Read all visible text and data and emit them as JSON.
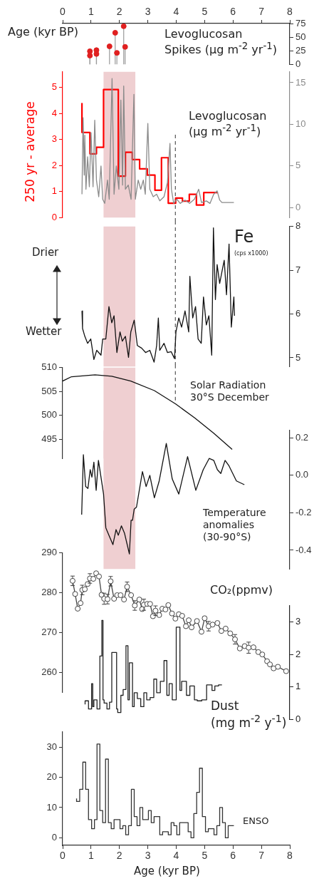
{
  "chart_data": [
    {
      "type": "lollipop",
      "xlabel": "Age (kyr BP)",
      "ylabel": "Levoglucosan Spikes (μg m$^{-2}$ yr$^{-1}$)",
      "marker": "circle",
      "color": "#e02020",
      "x": [
        0.96,
        0.96,
        1.19,
        1.19,
        1.65,
        1.85,
        1.91,
        2.15,
        2.2
      ],
      "values": [
        24,
        16,
        26,
        19,
        33,
        58,
        21,
        70,
        32
      ],
      "xlim": [
        0,
        8
      ],
      "xticks": [
        0,
        1,
        2,
        3,
        4,
        5,
        6,
        7,
        8
      ],
      "ylim": [
        0,
        75
      ],
      "yticks": [
        0,
        25,
        50,
        75
      ]
    },
    {
      "type": "line",
      "ylabel": "250 yr - average",
      "y2label": "Levoglucosan (μg m$^{-2}$ yr$^{-1}$)",
      "tick_labels": "y",
      "xlim": [
        0,
        8
      ],
      "ylim": [
        0,
        5.6
      ],
      "yticks": [
        0,
        1,
        2,
        3,
        4,
        5
      ],
      "y2lim": [
        -1.2,
        16.3
      ],
      "y2ticks": [
        0,
        5,
        10,
        15
      ],
      "series": [
        {
          "axis": "y2",
          "color": "#8a8a8a",
          "x": [
            0.68,
            0.72,
            0.76,
            0.78,
            0.82,
            0.88,
            0.94,
            1.0,
            1.07,
            1.13,
            1.19,
            1.27,
            1.35,
            1.41,
            1.48,
            1.58,
            1.64,
            1.74,
            1.81,
            1.89,
            1.98,
            2.05,
            2.11,
            2.15,
            2.21,
            2.31,
            2.41,
            2.51,
            2.56,
            2.66,
            2.75,
            2.84,
            2.91,
            3.0,
            3.07,
            3.19,
            3.31,
            3.42,
            3.57,
            3.69,
            3.78,
            3.83,
            3.91,
            4.02,
            4.14,
            4.31,
            4.47,
            4.64,
            4.79,
            4.89,
            5.06,
            5.19,
            5.32,
            5.44,
            5.53,
            5.61,
            6.03
          ],
          "values": [
            1.6,
            10.8,
            3.9,
            8.7,
            2.2,
            6.1,
            2.5,
            9.0,
            2.5,
            10.5,
            3.3,
            1.3,
            5.0,
            1.0,
            0.5,
            3.3,
            1.0,
            15.5,
            1.6,
            5.0,
            2.2,
            12.9,
            2.7,
            14.6,
            2.2,
            2.7,
            1.0,
            13.6,
            1.0,
            3.3,
            2.2,
            3.3,
            1.6,
            10.1,
            2.2,
            1.3,
            1.6,
            0.8,
            1.3,
            3.0,
            7.7,
            2.2,
            0.5,
            1.0,
            0.5,
            0.9,
            0.5,
            1.0,
            2.2,
            0.6,
            0.8,
            0.5,
            1.6,
            2.0,
            0.9,
            0.6,
            0.6
          ]
        },
        {
          "type": "step",
          "color": "#ff0000",
          "x": [
            0.68,
            0.96,
            1.19,
            1.44,
            1.96,
            2.21,
            2.45,
            2.71,
            2.98,
            3.25,
            3.48,
            3.72,
            3.98,
            4.22,
            4.46,
            4.71,
            4.97,
            5.22,
            5.47
          ],
          "values": [
            4.4,
            3.27,
            2.45,
            2.7,
            4.92,
            1.59,
            2.51,
            2.23,
            1.87,
            1.63,
            1.05,
            2.3,
            0.55,
            0.75,
            0.63,
            0.89,
            0.48,
            0.96,
            0.96
          ]
        }
      ],
      "bands": [
        {
          "axis": "x",
          "from": 1.44,
          "to": 2.56,
          "color": "#efcfd1"
        }
      ],
      "ref_lines": [
        {
          "axis": "x",
          "value": 3.97,
          "color": "#555555",
          "line_style": "dashed"
        }
      ]
    },
    {
      "type": "line",
      "ylabel": "Fe",
      "annotations": [
        "(cps x1000)",
        "Drier",
        "Wetter"
      ],
      "tick_labels": "y",
      "xlim": [
        0,
        8
      ],
      "ylim": [
        4.8,
        8
      ],
      "yticks": [
        5,
        6,
        7,
        8
      ],
      "color": "#111111",
      "x": [
        0.68,
        0.7,
        0.78,
        0.88,
        0.99,
        1.1,
        1.2,
        1.35,
        1.41,
        1.52,
        1.63,
        1.73,
        1.81,
        1.91,
        2.02,
        2.1,
        2.21,
        2.32,
        2.4,
        2.52,
        2.63,
        2.78,
        2.92,
        3.07,
        3.22,
        3.31,
        3.37,
        3.42,
        3.57,
        3.69,
        3.82,
        3.94,
        3.99,
        4.09,
        4.19,
        4.31,
        4.44,
        4.48,
        4.58,
        4.68,
        4.77,
        4.88,
        4.96,
        5.06,
        5.15,
        5.25,
        5.31,
        5.38,
        5.44,
        5.53,
        5.61,
        5.69,
        5.77,
        5.86,
        5.94,
        6.03,
        6.05
      ],
      "values": [
        6.07,
        5.67,
        5.49,
        5.33,
        5.43,
        4.96,
        5.17,
        5.06,
        5.43,
        5.43,
        6.17,
        5.8,
        5.96,
        5.12,
        5.59,
        5.38,
        5.49,
        5.01,
        5.59,
        5.86,
        5.28,
        5.22,
        5.12,
        5.17,
        4.9,
        5.28,
        5.91,
        5.17,
        5.33,
        5.12,
        5.14,
        4.98,
        5.59,
        5.91,
        5.7,
        6.07,
        5.59,
        6.86,
        5.91,
        6.17,
        5.43,
        5.33,
        6.39,
        5.75,
        5.96,
        5.06,
        7.97,
        6.33,
        7.13,
        6.7,
        6.97,
        7.23,
        6.44,
        7.6,
        5.7,
        6.39,
        5.96
      ],
      "bands": [
        {
          "axis": "x",
          "from": 1.44,
          "to": 2.56,
          "color": "#efcfd1"
        }
      ],
      "ref_lines": [
        {
          "axis": "x",
          "value": 3.97,
          "color": "#555555",
          "line_style": "dashed"
        }
      ]
    },
    {
      "type": "line",
      "ylabel": "Solar Radiation 30°S December",
      "tick_labels": "y",
      "xlim": [
        0,
        8
      ],
      "ylim": [
        491,
        510
      ],
      "yticks": [
        495,
        500,
        505,
        510
      ],
      "color": "#111111",
      "x": [
        0,
        0.31,
        1.14,
        1.73,
        2.4,
        3.23,
        3.98,
        4.65,
        5.32,
        5.97
      ],
      "values": [
        507.2,
        508.1,
        508.5,
        508.2,
        507.2,
        505.2,
        502.4,
        499.5,
        496.3,
        492.9
      ],
      "bands": [
        {
          "axis": "x",
          "from": 1.44,
          "to": 2.56,
          "color": "#efcfd1"
        }
      ],
      "ref_lines": [
        {
          "axis": "x",
          "value": 3.97,
          "color": "#555555",
          "line_style": "dashed"
        }
      ]
    },
    {
      "type": "line",
      "ylabel": "Temperature anomalies (30-90°S)",
      "tick_labels": "y",
      "xlim": [
        0,
        8
      ],
      "ylim": [
        -0.5,
        0.24
      ],
      "yticks": [
        {
          "value": -0.4,
          "label": "-0.4"
        },
        {
          "value": -0.2,
          "label": "-0.2"
        },
        {
          "value": 0,
          "label": "0.0"
        },
        {
          "value": 0.2,
          "label": "0.2"
        }
      ],
      "color": "#111111",
      "x": [
        0.67,
        0.73,
        0.81,
        0.89,
        0.97,
        1.03,
        1.1,
        1.18,
        1.26,
        1.44,
        1.52,
        1.63,
        1.77,
        1.88,
        1.96,
        2.07,
        2.18,
        2.35,
        2.41,
        2.46,
        2.52,
        2.6,
        2.81,
        2.94,
        3.07,
        3.23,
        3.4,
        3.65,
        3.86,
        4.09,
        4.4,
        4.69,
        4.95,
        5.16,
        5.32,
        5.45,
        5.57,
        5.72,
        5.86,
        5.99,
        6.12,
        6.4
      ],
      "values": [
        -0.21,
        0.11,
        -0.06,
        -0.07,
        0.03,
        -0.01,
        0.07,
        -0.08,
        0.08,
        -0.1,
        -0.28,
        -0.32,
        -0.37,
        -0.29,
        -0.32,
        -0.27,
        -0.31,
        -0.42,
        -0.24,
        -0.24,
        -0.18,
        -0.17,
        0.02,
        -0.06,
        0.0,
        -0.12,
        -0.03,
        0.17,
        -0.02,
        -0.1,
        0.1,
        -0.08,
        0.03,
        0.09,
        0.08,
        0.03,
        0.01,
        0.08,
        0.05,
        0.01,
        -0.03,
        -0.05
      ],
      "bands": [
        {
          "axis": "x",
          "from": 1.44,
          "to": 2.56,
          "color": "#efcfd1"
        }
      ]
    },
    {
      "type": "line",
      "ylabel": "CO₂(ppmv)",
      "marker": "circle",
      "tick_labels": "y",
      "xlim": [
        0,
        8
      ],
      "ylim": [
        255,
        290
      ],
      "yticks": [
        260,
        270,
        280,
        290
      ],
      "color": "#444444",
      "x": [
        0.35,
        0.44,
        0.53,
        0.63,
        0.69,
        0.78,
        0.88,
        0.96,
        1.08,
        1.18,
        1.28,
        1.37,
        1.46,
        1.58,
        1.69,
        1.81,
        1.92,
        2.04,
        2.16,
        2.27,
        2.41,
        2.54,
        2.7,
        2.8,
        2.86,
        2.98,
        3.08,
        3.18,
        3.27,
        3.4,
        3.51,
        3.62,
        3.72,
        3.85,
        3.97,
        4.09,
        4.21,
        4.34,
        4.44,
        4.54,
        4.73,
        4.89,
        5.0,
        5.14,
        5.28,
        5.45,
        5.59,
        5.74,
        5.9,
        6.07,
        6.24,
        6.41,
        6.55,
        6.72,
        6.89,
        7.03,
        7.2,
        7.3,
        7.43,
        7.58,
        7.87
      ],
      "values": [
        283.0,
        279.7,
        276.0,
        277.4,
        280.7,
        280.9,
        282.2,
        283.6,
        283.5,
        284.9,
        284.1,
        279.5,
        278.5,
        278.4,
        282.9,
        278.5,
        279.4,
        279.4,
        278.3,
        281.5,
        279.4,
        276.8,
        278.3,
        275.9,
        277.0,
        277.2,
        277.2,
        274.1,
        275.5,
        274.4,
        276.0,
        275.8,
        276.9,
        274.8,
        273.5,
        274.6,
        274.2,
        271.6,
        273.1,
        271.3,
        272.9,
        270.2,
        273.6,
        271.6,
        272.0,
        272.4,
        270.4,
        271.0,
        269.8,
        268.3,
        266.0,
        266.6,
        266.2,
        266.3,
        265.1,
        264.5,
        262.8,
        262.0,
        261.0,
        261.4,
        260.3
      ],
      "errors": [
        1.2,
        null,
        null,
        null,
        1.2,
        null,
        null,
        1.2,
        null,
        null,
        null,
        null,
        1.4,
        1.2,
        1.2,
        null,
        null,
        null,
        null,
        1.2,
        null,
        1.2,
        null,
        null,
        1.4,
        null,
        null,
        null,
        1.2,
        null,
        null,
        null,
        null,
        null,
        null,
        null,
        null,
        null,
        null,
        null,
        null,
        null,
        null,
        1.2,
        null,
        null,
        null,
        null,
        null,
        1.2,
        null,
        null,
        1.4,
        null,
        null,
        null,
        null,
        null,
        null,
        null,
        null
      ]
    },
    {
      "type": "step",
      "y2label": "Dust (mg m$^{-2}$ y$^{-1}$)",
      "tick_labels": "y",
      "xlim": [
        0,
        8
      ],
      "y2lim": [
        0,
        3.5
      ],
      "y2ticks": [
        0,
        1,
        2,
        3
      ],
      "series": [
        {
          "axis": "y2",
          "color": "#222222",
          "x": [
            0.79,
            0.91,
            1.02,
            1.06,
            1.1,
            1.21,
            1.31,
            1.38,
            1.42,
            1.46,
            1.56,
            1.65,
            1.73,
            1.9,
            1.94,
            2.05,
            2.13,
            2.23,
            2.3,
            2.35,
            2.46,
            2.52,
            2.63,
            2.75,
            2.86,
            2.96,
            3.08,
            3.21,
            3.31,
            3.44,
            3.57,
            3.67,
            3.75,
            3.86,
            4.0,
            4.13,
            4.19,
            4.36,
            4.48,
            4.64,
            4.74,
            4.9,
            5.07,
            5.26,
            5.36,
            5.49,
            5.61
          ],
          "values": [
            0.46,
            0.57,
            0.32,
            1.1,
            0.39,
            0.6,
            0.32,
            1.95,
            3.05,
            0.6,
            0.5,
            0.32,
            0.53,
            2.06,
            0.32,
            0.21,
            0.74,
            0.92,
            2.27,
            0.6,
            1.74,
            0.39,
            0.82,
            0.64,
            0.39,
            0.82,
            0.6,
            0.67,
            1.24,
            0.82,
            1.17,
            1.81,
            0.74,
            1.1,
            0.6,
            2.84,
            0.89,
            1.17,
            0.74,
            1.03,
            0.6,
            0.57,
            0.6,
            1.06,
            0.89,
            1.03,
            1.06
          ]
        }
      ]
    },
    {
      "type": "step",
      "xlabel": "Age (kyr BP)",
      "xlim": [
        0,
        8
      ],
      "xticks": [
        0,
        1,
        2,
        3,
        4,
        5,
        6,
        7,
        8
      ],
      "ylim": [
        -2.5,
        35
      ],
      "yticks": [
        0,
        10,
        20,
        30
      ],
      "series": [
        {
          "name": "ENSO",
          "color": "#333333",
          "x": [
            0.49,
            0.6,
            0.71,
            0.81,
            0.91,
            1.02,
            1.12,
            1.21,
            1.31,
            1.41,
            1.51,
            1.61,
            1.71,
            1.81,
            2.02,
            2.12,
            2.22,
            2.32,
            2.42,
            2.52,
            2.62,
            2.72,
            2.82,
            3.02,
            3.12,
            3.22,
            3.42,
            3.52,
            3.72,
            3.82,
            3.92,
            4.02,
            4.12,
            4.42,
            4.52,
            4.62,
            4.72,
            4.82,
            4.92,
            5.03,
            5.13,
            5.33,
            5.43,
            5.53,
            5.63,
            5.73,
            5.83,
            6.03
          ],
          "values": [
            13,
            12,
            16,
            25,
            16,
            6,
            3,
            6,
            31,
            9,
            5,
            26,
            5,
            3,
            6,
            3,
            4,
            1,
            4,
            16,
            7,
            4,
            10,
            6,
            9,
            5,
            7,
            1,
            2,
            1,
            5,
            4,
            1,
            5,
            2,
            0,
            8,
            15,
            23,
            7,
            2,
            3,
            1,
            4,
            10,
            5,
            0,
            4
          ]
        }
      ]
    }
  ]
}
